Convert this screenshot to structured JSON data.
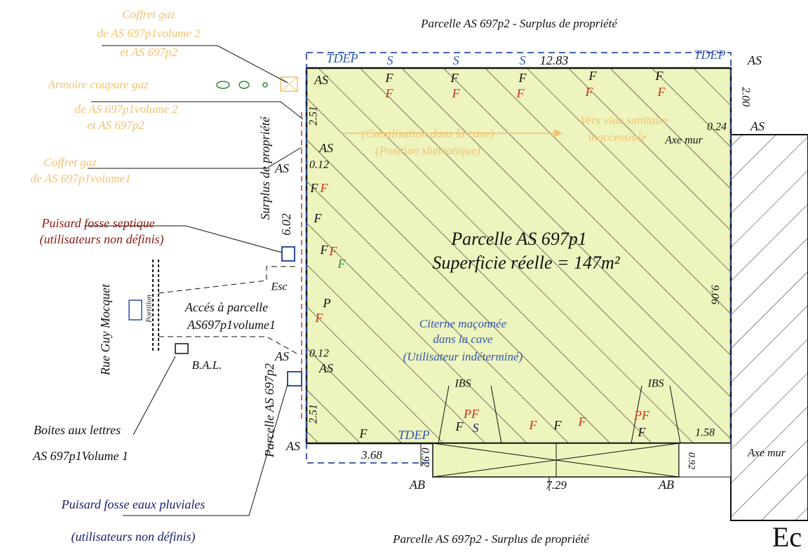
{
  "texts": [
    "Parcelle AS 697p2 - Surplus de propriété",
    "Parcelle AS 697p2 - Surplus de propriété",
    "Parcelle AS 697p1",
    "Superficie réelle = 147m²",
    "Citerne maçonnée",
    "dans la cave",
    "(Utilisateur indéterminé)",
    "Coffret gaz",
    "de AS 697p1volume 2",
    "et AS 697p2",
    "Armoire coupure gaz",
    "de AS 697p1volume 2",
    "et AS 697p2",
    "Coffret gaz",
    "de AS 697p1volume1",
    "Puisard fosse septique",
    "(utilisateurs non définis)",
    "Rue Guy Mocquet",
    "Portillon",
    "Accés à parcelle",
    "AS697p1volume1",
    "Esc",
    "B.A.L.",
    "Boites aux lettres",
    "AS 697p1Volume 1",
    "Puisard fosse eaux pluviales",
    "(utilisateurs non définis)",
    "Surplus de propriété",
    "Parcelle AS 697p2",
    "(Canalisation dans la cave)",
    "(Position shématique)",
    "Vers vide sanitaire",
    "inaccessible",
    "Axe mur",
    "Axe mur",
    "12.83",
    "2.00",
    "0.24",
    "2.51",
    "0.12",
    "6.02",
    "0.12",
    "2.51",
    "3.68",
    "0.92",
    "7.29",
    "1.58",
    "0.92",
    "9.06",
    "TDEP",
    "TDEP",
    "TDEP",
    "S",
    "S",
    "S",
    "S",
    "AS",
    "AS",
    "AS",
    "AS",
    "AS",
    "AS",
    "AS",
    "AS",
    "IBS",
    "IBS",
    "PF",
    "PF",
    "AB",
    "AB",
    "P",
    "Ec",
    "F",
    "F",
    "F",
    "F",
    "F",
    "F",
    "F",
    "F",
    "F",
    "F",
    "F",
    "F",
    "F",
    "F",
    "F",
    "F",
    "F",
    "F",
    "F",
    "F",
    "F",
    "F",
    "F"
  ]
}
